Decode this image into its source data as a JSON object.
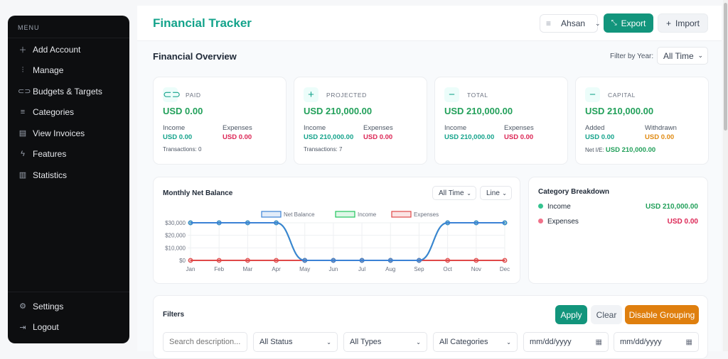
{
  "sidebar": {
    "menu_label": "MENU",
    "items": [
      {
        "label": "Add Account",
        "icon": "plus"
      },
      {
        "label": "Manage",
        "icon": "sliders"
      },
      {
        "label": "Budgets & Targets",
        "icon": "pill"
      },
      {
        "label": "Categories",
        "icon": "filter-lines"
      },
      {
        "label": "View Invoices",
        "icon": "invoice"
      },
      {
        "label": "Features",
        "icon": "lightning"
      },
      {
        "label": "Statistics",
        "icon": "bar-chart"
      }
    ],
    "bottom": [
      {
        "label": "Settings",
        "icon": "gear"
      },
      {
        "label": "Logout",
        "icon": "logout"
      }
    ]
  },
  "header": {
    "title": "Financial Tracker",
    "user": "Ahsan",
    "export": "Export",
    "import": "Import"
  },
  "overview": {
    "title": "Financial Overview",
    "year_label": "Filter by Year:",
    "year_value": "All Time"
  },
  "cards": [
    {
      "label": "PAID",
      "amount": "USD 0.00",
      "left_label": "Income",
      "left_value": "USD 0.00",
      "right_label": "Expenses",
      "right_value": "USD 0.00",
      "footer": "Transactions: 0"
    },
    {
      "label": "PROJECTED",
      "amount": "USD 210,000.00",
      "left_label": "Income",
      "left_value": "USD 210,000.00",
      "right_label": "Expenses",
      "right_value": "USD 0.00",
      "footer": "Transactions: 7"
    },
    {
      "label": "TOTAL",
      "amount": "USD 210,000.00",
      "left_label": "Income",
      "left_value": "USD 210,000.00",
      "right_label": "Expenses",
      "right_value": "USD 0.00"
    },
    {
      "label": "CAPITAL",
      "amount": "USD 210,000.00",
      "left_label": "Added",
      "left_value": "USD 0.00",
      "right_label": "Withdrawn",
      "right_value": "USD 0.00",
      "net_label": "Net I/E:",
      "net_value": "USD 210,000.00"
    }
  ],
  "chart_card": {
    "title": "Monthly Net Balance",
    "range": "All Time",
    "type_select": "Line"
  },
  "chart_data": {
    "type": "line",
    "categories": [
      "Jan",
      "Feb",
      "Mar",
      "Apr",
      "May",
      "Jun",
      "Jul",
      "Aug",
      "Sep",
      "Oct",
      "Nov",
      "Dec"
    ],
    "series": [
      {
        "name": "Net Balance",
        "color": "#3b82d6",
        "values": [
          30000,
          30000,
          30000,
          30000,
          0,
          0,
          0,
          0,
          0,
          30000,
          30000,
          30000
        ]
      },
      {
        "name": "Income",
        "color": "#22c55e",
        "values": [
          30000,
          30000,
          30000,
          30000,
          0,
          0,
          0,
          0,
          0,
          30000,
          30000,
          30000
        ]
      },
      {
        "name": "Expenses",
        "color": "#e04848",
        "values": [
          0,
          0,
          0,
          0,
          0,
          0,
          0,
          0,
          0,
          0,
          0,
          0
        ]
      }
    ],
    "yticks": [
      "$0",
      "$10,000",
      "$20,000",
      "$30,000"
    ],
    "ylim": [
      0,
      30000
    ],
    "grid": true,
    "legend": "top"
  },
  "category": {
    "title": "Category Breakdown",
    "items": [
      {
        "label": "Income",
        "value": "USD 210,000.00",
        "color": "#34c38f"
      },
      {
        "label": "Expenses",
        "value": "USD 0.00",
        "color": "#f0728a"
      }
    ]
  },
  "filters": {
    "title": "Filters",
    "apply": "Apply",
    "clear": "Clear",
    "grouping": "Disable Grouping",
    "search_placeholder": "Search description...",
    "status": "All Status",
    "types": "All Types",
    "categories": "All Categories",
    "date_from": "mm/dd/yyyy",
    "date_to": "mm/dd/yyyy"
  }
}
